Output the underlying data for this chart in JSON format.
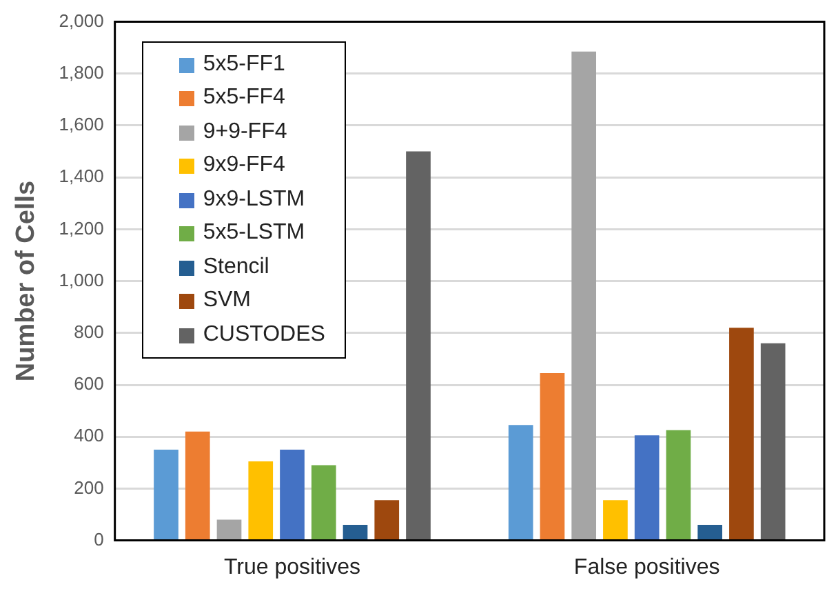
{
  "chart_data": {
    "type": "bar",
    "ylabel": "Number of Cells",
    "categories": [
      "True positives",
      "False positives"
    ],
    "series": [
      {
        "name": "5x5-FF1",
        "color": "#5b9bd5",
        "values": [
          350,
          445
        ]
      },
      {
        "name": "5x5-FF4",
        "color": "#ed7d31",
        "values": [
          420,
          645
        ]
      },
      {
        "name": "9+9-FF4",
        "color": "#a5a5a5",
        "values": [
          80,
          1885
        ]
      },
      {
        "name": "9x9-FF4",
        "color": "#ffc000",
        "values": [
          305,
          155
        ]
      },
      {
        "name": "9x9-LSTM",
        "color": "#4472c4",
        "values": [
          350,
          405
        ]
      },
      {
        "name": "5x5-LSTM",
        "color": "#70ad47",
        "values": [
          290,
          425
        ]
      },
      {
        "name": "Stencil",
        "color": "#255e91",
        "values": [
          60,
          60
        ]
      },
      {
        "name": "SVM",
        "color": "#9e480e",
        "values": [
          155,
          820
        ]
      },
      {
        "name": "CUSTODES",
        "color": "#636363",
        "values": [
          1500,
          760
        ]
      }
    ],
    "ylim": [
      0,
      2000
    ],
    "yticks": [
      0,
      200,
      400,
      600,
      800,
      {
        "value": 1000,
        "label": "1,000"
      },
      {
        "value": 1200,
        "label": "1,200"
      },
      {
        "value": 1400,
        "label": "1,400"
      },
      {
        "value": 1600,
        "label": "1,600"
      },
      {
        "value": 1800,
        "label": "1,800"
      },
      {
        "value": 2000,
        "label": "2,000"
      }
    ],
    "grid": "y",
    "legend": "top left"
  }
}
